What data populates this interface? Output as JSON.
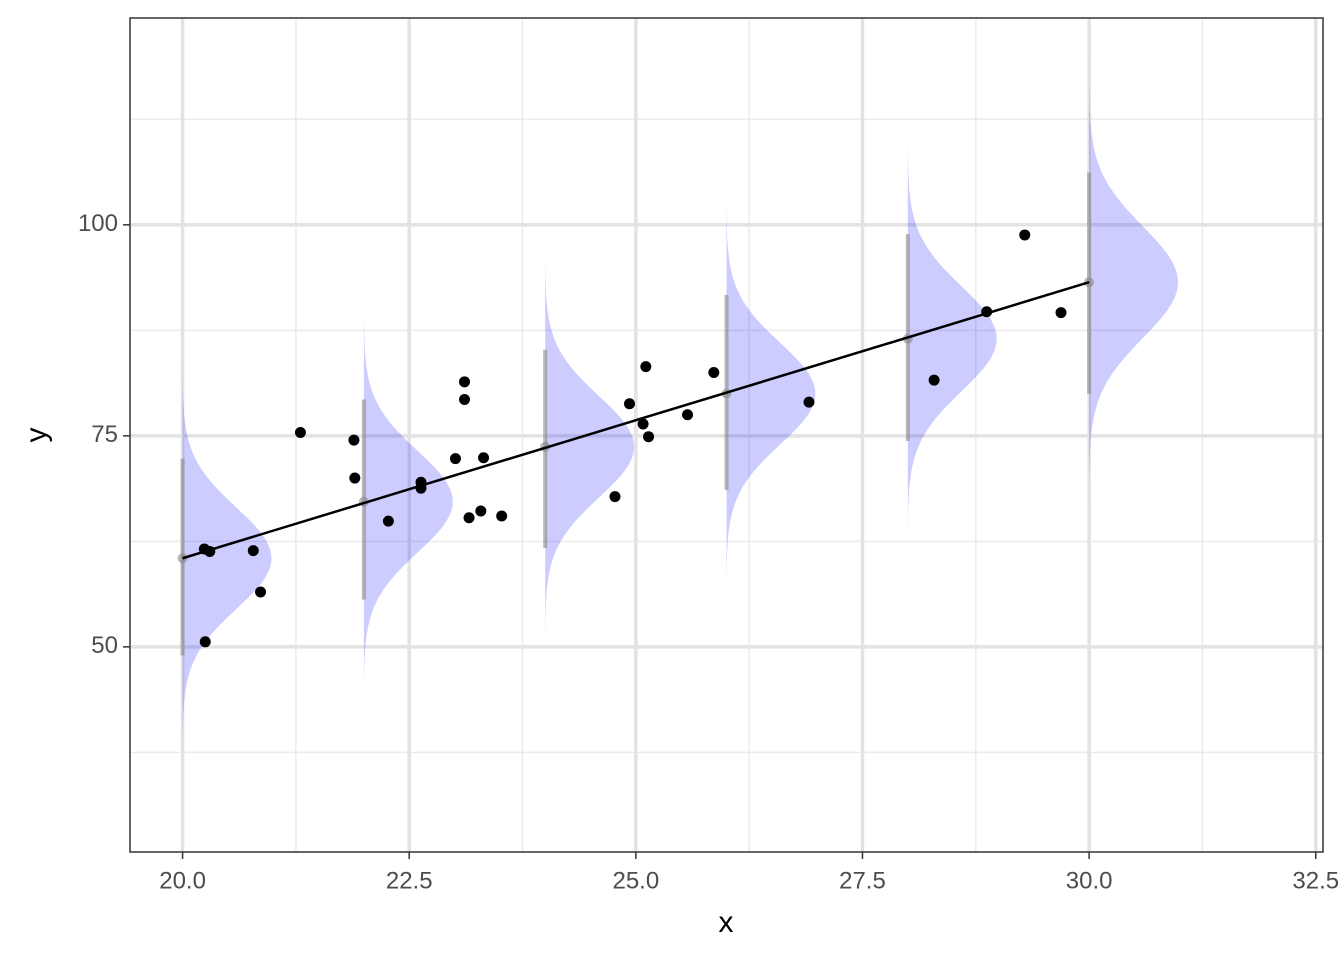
{
  "chart_data": {
    "type": "scatter",
    "x_label": "x",
    "y_label": "y",
    "xlim": [
      19.42,
      32.58
    ],
    "ylim": [
      25.7,
      124.5
    ],
    "xticks": [
      {
        "value": 20,
        "label": "20.0"
      },
      22.5,
      {
        "value": 25,
        "label": "25.0"
      },
      27.5,
      {
        "value": 30,
        "label": "30.0"
      },
      32.5
    ],
    "yticks": [
      50,
      75,
      100
    ],
    "grid": true,
    "point_color": "#000000",
    "x": [
      20.24,
      20.3,
      20.25,
      20.78,
      20.86,
      21.3,
      21.89,
      21.9,
      22.27,
      22.63,
      22.63,
      23.01,
      23.11,
      23.11,
      23.16,
      23.29,
      23.32,
      23.52,
      24.77,
      24.93,
      25.08,
      25.11,
      25.14,
      25.57,
      25.86,
      26.91,
      28.29,
      28.87,
      29.29,
      29.69
    ],
    "y": [
      61.6,
      61.3,
      50.6,
      61.4,
      56.5,
      75.4,
      74.5,
      70.0,
      64.9,
      69.5,
      68.8,
      72.3,
      81.4,
      79.3,
      65.3,
      66.1,
      72.4,
      65.5,
      67.8,
      78.8,
      76.4,
      83.2,
      74.9,
      77.5,
      82.5,
      79.0,
      81.6,
      89.7,
      98.8,
      89.6
    ],
    "fit": {
      "color": "#000000",
      "x": [
        20,
        30
      ],
      "y": [
        60.5,
        93.2
      ]
    },
    "distribution_color": "#0000ff",
    "interval_color": "#888888",
    "distributions": [
      {
        "x": 20,
        "center": 60.5,
        "lower": 49.0,
        "upper": 72.3,
        "sd": 6.0
      },
      {
        "x": 22,
        "center": 67.2,
        "lower": 55.6,
        "upper": 79.3,
        "sd": 6.0
      },
      {
        "x": 24,
        "center": 73.7,
        "lower": 61.7,
        "upper": 85.2,
        "sd": 6.0
      },
      {
        "x": 26,
        "center": 80.0,
        "lower": 68.6,
        "upper": 91.7,
        "sd": 6.0
      },
      {
        "x": 28,
        "center": 86.5,
        "lower": 74.4,
        "upper": 98.9,
        "sd": 6.2
      },
      {
        "x": 30,
        "center": 93.2,
        "lower": 80.0,
        "upper": 106.2,
        "sd": 6.6
      }
    ]
  }
}
